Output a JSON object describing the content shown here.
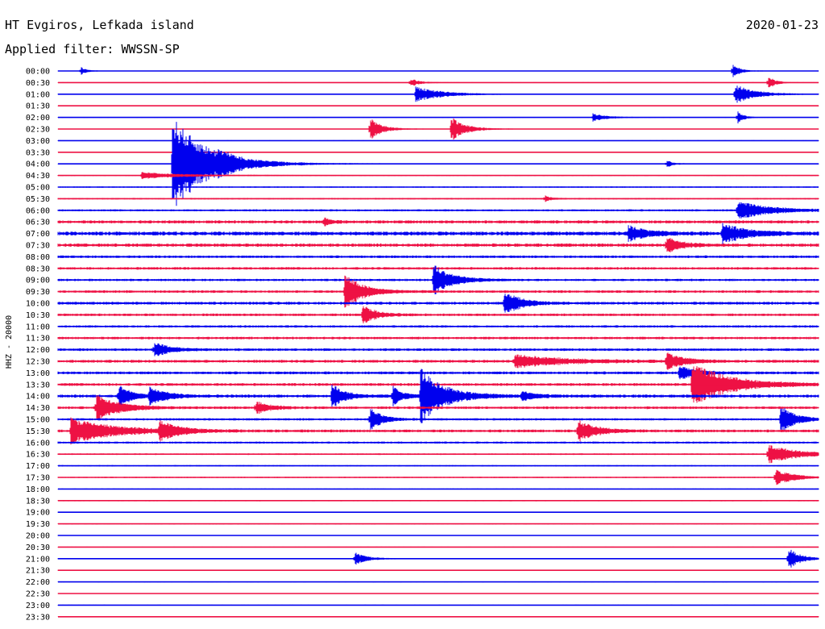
{
  "header": {
    "station": "HT Evgiros, Lefkada island",
    "filter_label": "Applied filter: WWSSN-SP",
    "date": "2020-01-23"
  },
  "channel_label": "HHZ - 20000",
  "colors": {
    "odd_trace": "#0000ee",
    "even_trace": "#ee1144",
    "text": "#000000"
  },
  "chart_data": {
    "type": "line",
    "plot": "helicorder",
    "title": "HT Evgiros, Lefkada island",
    "ylabel": "HHZ - 20000",
    "row_labels": [
      "00:00",
      "00:30",
      "01:00",
      "01:30",
      "02:00",
      "02:30",
      "03:00",
      "03:30",
      "04:00",
      "04:30",
      "05:00",
      "05:30",
      "06:00",
      "06:30",
      "07:00",
      "07:30",
      "08:00",
      "08:30",
      "09:00",
      "09:30",
      "10:00",
      "10:30",
      "11:00",
      "11:30",
      "12:00",
      "12:30",
      "13:00",
      "13:30",
      "14:00",
      "14:30",
      "15:00",
      "15:30",
      "16:00",
      "16:30",
      "17:00",
      "17:30",
      "18:00",
      "18:30",
      "19:00",
      "19:30",
      "20:00",
      "20:30",
      "21:00",
      "21:30",
      "22:00",
      "22:30",
      "23:00",
      "23:30"
    ],
    "row_minutes": 30,
    "row_colors": [
      "blue",
      "red"
    ],
    "noise_level": [
      0.3,
      0.3,
      0.3,
      0.3,
      0.3,
      0.3,
      0.3,
      0.3,
      0.4,
      0.4,
      0.5,
      0.6,
      0.8,
      1.2,
      1.5,
      1.3,
      1.0,
      1.0,
      0.9,
      1.0,
      1.1,
      1.0,
      0.9,
      1.0,
      1.0,
      1.1,
      1.1,
      1.1,
      1.2,
      1.0,
      0.9,
      1.1,
      0.8,
      0.6,
      0.5,
      0.5,
      0.4,
      0.5,
      0.4,
      0.4,
      0.3,
      0.3,
      0.4,
      0.4,
      0.3,
      0.3,
      0.3,
      0.3
    ],
    "events": [
      {
        "row": 0,
        "minute": 0.9,
        "amp": 5,
        "duration": 0.5
      },
      {
        "row": 0,
        "minute": 26.6,
        "amp": 10,
        "duration": 0.6
      },
      {
        "row": 1,
        "minute": 28.0,
        "amp": 9,
        "duration": 0.6
      },
      {
        "row": 1,
        "minute": 13.9,
        "amp": 5,
        "duration": 0.8
      },
      {
        "row": 2,
        "minute": 14.1,
        "amp": 10,
        "duration": 2.2
      },
      {
        "row": 2,
        "minute": 26.7,
        "amp": 12,
        "duration": 1.8
      },
      {
        "row": 4,
        "minute": 21.1,
        "amp": 5,
        "duration": 1.2
      },
      {
        "row": 4,
        "minute": 26.8,
        "amp": 8,
        "duration": 0.5
      },
      {
        "row": 5,
        "minute": 12.3,
        "amp": 14,
        "duration": 1.0
      },
      {
        "row": 5,
        "minute": 15.5,
        "amp": 16,
        "duration": 1.2
      },
      {
        "row": 8,
        "minute": 4.5,
        "amp": 60,
        "duration": 3.0
      },
      {
        "row": 8,
        "minute": 6.3,
        "amp": 8,
        "duration": 1.0
      },
      {
        "row": 8,
        "minute": 24.0,
        "amp": 5,
        "duration": 0.5
      },
      {
        "row": 9,
        "minute": 3.3,
        "amp": 4,
        "duration": 3.5
      },
      {
        "row": 11,
        "minute": 19.2,
        "amp": 4,
        "duration": 0.5
      },
      {
        "row": 12,
        "minute": 26.8,
        "amp": 12,
        "duration": 2.5
      },
      {
        "row": 13,
        "minute": 10.5,
        "amp": 5,
        "duration": 0.6
      },
      {
        "row": 14,
        "minute": 22.5,
        "amp": 10,
        "duration": 1.5
      },
      {
        "row": 14,
        "minute": 26.2,
        "amp": 12,
        "duration": 2.0
      },
      {
        "row": 15,
        "minute": 24.0,
        "amp": 10,
        "duration": 1.2
      },
      {
        "row": 18,
        "minute": 14.8,
        "amp": 20,
        "duration": 1.5
      },
      {
        "row": 19,
        "minute": 11.3,
        "amp": 22,
        "duration": 1.5
      },
      {
        "row": 20,
        "minute": 17.6,
        "amp": 16,
        "duration": 1.3
      },
      {
        "row": 21,
        "minute": 12.0,
        "amp": 14,
        "duration": 1.0
      },
      {
        "row": 24,
        "minute": 3.8,
        "amp": 10,
        "duration": 1.2
      },
      {
        "row": 25,
        "minute": 18.0,
        "amp": 8,
        "duration": 4.0
      },
      {
        "row": 25,
        "minute": 24.0,
        "amp": 10,
        "duration": 1.5
      },
      {
        "row": 26,
        "minute": 24.5,
        "amp": 8,
        "duration": 1.5
      },
      {
        "row": 27,
        "minute": 25.0,
        "amp": 28,
        "duration": 3.0
      },
      {
        "row": 28,
        "minute": 2.4,
        "amp": 14,
        "duration": 1.0
      },
      {
        "row": 28,
        "minute": 3.6,
        "amp": 10,
        "duration": 1.5
      },
      {
        "row": 28,
        "minute": 10.8,
        "amp": 16,
        "duration": 1.0
      },
      {
        "row": 28,
        "minute": 13.2,
        "amp": 12,
        "duration": 0.8
      },
      {
        "row": 28,
        "minute": 14.3,
        "amp": 34,
        "duration": 2.0
      },
      {
        "row": 28,
        "minute": 18.3,
        "amp": 6,
        "duration": 1.0
      },
      {
        "row": 29,
        "minute": 1.5,
        "amp": 18,
        "duration": 1.8
      },
      {
        "row": 29,
        "minute": 7.8,
        "amp": 8,
        "duration": 1.2
      },
      {
        "row": 30,
        "minute": 12.3,
        "amp": 14,
        "duration": 1.0
      },
      {
        "row": 30,
        "minute": 28.5,
        "amp": 18,
        "duration": 1.2
      },
      {
        "row": 31,
        "minute": 0.5,
        "amp": 16,
        "duration": 3.5
      },
      {
        "row": 31,
        "minute": 4.0,
        "amp": 12,
        "duration": 1.5
      },
      {
        "row": 31,
        "minute": 20.5,
        "amp": 14,
        "duration": 1.5
      },
      {
        "row": 33,
        "minute": 28.0,
        "amp": 12,
        "duration": 2.5
      },
      {
        "row": 35,
        "minute": 28.3,
        "amp": 10,
        "duration": 1.5
      },
      {
        "row": 42,
        "minute": 11.7,
        "amp": 8,
        "duration": 1.0
      },
      {
        "row": 42,
        "minute": 28.8,
        "amp": 14,
        "duration": 1.0
      }
    ]
  }
}
